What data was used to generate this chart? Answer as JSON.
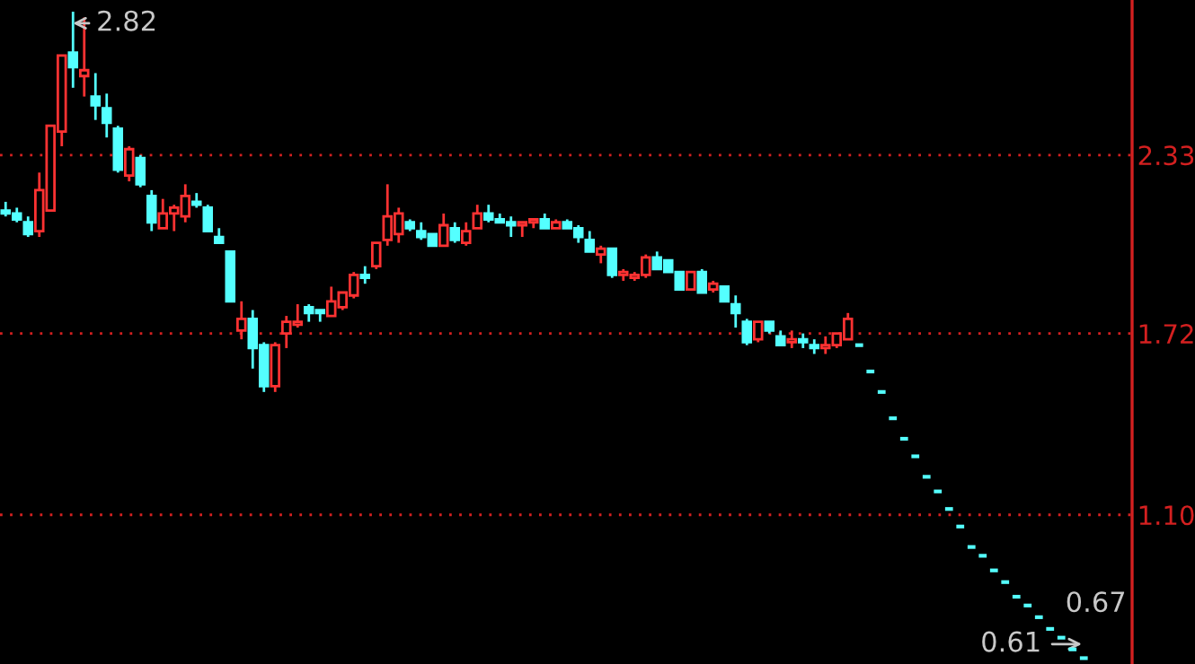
{
  "chart_data": {
    "type": "candlestick",
    "categories": [
      null,
      null,
      null,
      null,
      null,
      null,
      null,
      null,
      null,
      null,
      null,
      null,
      null,
      null,
      null,
      null,
      null,
      null,
      null,
      null,
      null,
      null,
      null,
      null,
      null,
      null,
      null,
      null,
      null,
      null,
      null,
      null,
      null,
      null,
      null,
      null,
      null,
      null,
      null,
      null,
      null,
      null,
      null,
      null,
      null,
      null,
      null,
      null,
      null,
      null,
      null,
      null,
      null,
      null,
      null,
      null,
      null,
      null,
      null,
      null,
      null,
      null,
      null,
      null,
      null,
      null,
      null,
      null,
      null,
      null,
      null,
      null,
      null,
      null,
      null,
      null,
      null,
      null,
      null,
      null,
      null,
      null,
      null,
      null,
      null,
      null,
      null,
      null,
      null,
      null,
      null,
      null,
      null,
      null,
      null,
      null,
      null
    ],
    "ohlc": [
      [
        2.14,
        2.17,
        2.12,
        2.13
      ],
      [
        2.13,
        2.15,
        2.1,
        2.11
      ],
      [
        2.1,
        2.12,
        2.05,
        2.06
      ],
      [
        2.07,
        2.27,
        2.05,
        2.21
      ],
      [
        2.14,
        2.43,
        2.14,
        2.43
      ],
      [
        2.41,
        2.67,
        2.36,
        2.67
      ],
      [
        2.68,
        2.82,
        2.56,
        2.63
      ],
      [
        2.6,
        2.8,
        2.53,
        2.62
      ],
      [
        2.53,
        2.61,
        2.45,
        2.5
      ],
      [
        2.49,
        2.54,
        2.39,
        2.44
      ],
      [
        2.42,
        2.43,
        2.27,
        2.28
      ],
      [
        2.26,
        2.36,
        2.24,
        2.35
      ],
      [
        2.32,
        2.33,
        2.22,
        2.23
      ],
      [
        2.19,
        2.21,
        2.07,
        2.1
      ],
      [
        2.08,
        2.18,
        2.08,
        2.13
      ],
      [
        2.13,
        2.16,
        2.07,
        2.15
      ],
      [
        2.12,
        2.23,
        2.1,
        2.19
      ],
      [
        2.17,
        2.2,
        2.15,
        2.16
      ],
      [
        2.15,
        2.16,
        2.07,
        2.07
      ],
      [
        2.05,
        2.08,
        2.03,
        2.03
      ],
      [
        2.0,
        2.0,
        1.83,
        1.83
      ],
      [
        1.73,
        1.83,
        1.7,
        1.77
      ],
      [
        1.77,
        1.8,
        1.6,
        1.67
      ],
      [
        1.68,
        1.69,
        1.52,
        1.54
      ],
      [
        1.54,
        1.69,
        1.52,
        1.68
      ],
      [
        1.72,
        1.78,
        1.67,
        1.76
      ],
      [
        1.75,
        1.82,
        1.74,
        1.76
      ],
      [
        1.81,
        1.82,
        1.76,
        1.79
      ],
      [
        1.8,
        1.8,
        1.76,
        1.79
      ],
      [
        1.78,
        1.88,
        1.78,
        1.83
      ],
      [
        1.81,
        1.86,
        1.8,
        1.86
      ],
      [
        1.85,
        1.93,
        1.84,
        1.92
      ],
      [
        1.92,
        1.95,
        1.89,
        1.91
      ],
      [
        1.95,
        2.03,
        1.94,
        2.03
      ],
      [
        2.04,
        2.23,
        2.02,
        2.12
      ],
      [
        2.06,
        2.15,
        2.03,
        2.13
      ],
      [
        2.1,
        2.11,
        2.07,
        2.08
      ],
      [
        2.07,
        2.1,
        2.04,
        2.05
      ],
      [
        2.06,
        2.06,
        2.02,
        2.02
      ],
      [
        2.02,
        2.13,
        2.02,
        2.09
      ],
      [
        2.08,
        2.1,
        2.03,
        2.04
      ],
      [
        2.03,
        2.1,
        2.02,
        2.07
      ],
      [
        2.08,
        2.16,
        2.08,
        2.13
      ],
      [
        2.13,
        2.16,
        2.1,
        2.11
      ],
      [
        2.11,
        2.13,
        2.1,
        2.1
      ],
      [
        2.1,
        2.12,
        2.05,
        2.09
      ],
      [
        2.09,
        2.1,
        2.05,
        2.1
      ],
      [
        2.1,
        2.11,
        2.08,
        2.11
      ],
      [
        2.11,
        2.13,
        2.08,
        2.08
      ],
      [
        2.08,
        2.11,
        2.08,
        2.1
      ],
      [
        2.1,
        2.11,
        2.08,
        2.08
      ],
      [
        2.08,
        2.09,
        2.03,
        2.05
      ],
      [
        2.04,
        2.07,
        2.0,
        2.0
      ],
      [
        1.99,
        2.02,
        1.96,
        2.01
      ],
      [
        2.01,
        2.01,
        1.91,
        1.92
      ],
      [
        1.92,
        1.94,
        1.9,
        1.93
      ],
      [
        1.91,
        1.93,
        1.9,
        1.92
      ],
      [
        1.92,
        1.99,
        1.91,
        1.98
      ],
      [
        1.98,
        2.0,
        1.94,
        1.94
      ],
      [
        1.97,
        1.97,
        1.93,
        1.93
      ],
      [
        1.93,
        1.93,
        1.87,
        1.87
      ],
      [
        1.87,
        1.93,
        1.87,
        1.93
      ],
      [
        1.93,
        1.94,
        1.86,
        1.86
      ],
      [
        1.87,
        1.9,
        1.86,
        1.89
      ],
      [
        1.88,
        1.88,
        1.83,
        1.83
      ],
      [
        1.82,
        1.85,
        1.74,
        1.79
      ],
      [
        1.76,
        1.77,
        1.68,
        1.69
      ],
      [
        1.7,
        1.76,
        1.69,
        1.76
      ],
      [
        1.76,
        1.76,
        1.72,
        1.73
      ],
      [
        1.71,
        1.73,
        1.68,
        1.68
      ],
      [
        1.69,
        1.73,
        1.67,
        1.7
      ],
      [
        1.7,
        1.72,
        1.67,
        1.69
      ],
      [
        1.68,
        1.7,
        1.65,
        1.67
      ],
      [
        1.67,
        1.71,
        1.65,
        1.68
      ],
      [
        1.68,
        1.72,
        1.67,
        1.72
      ],
      [
        1.7,
        1.79,
        1.7,
        1.77
      ],
      [
        1.68,
        1.68,
        1.68,
        1.68
      ],
      [
        1.59,
        1.59,
        1.59,
        1.59
      ],
      [
        1.52,
        1.52,
        1.52,
        1.52
      ],
      [
        1.43,
        1.43,
        1.43,
        1.43
      ],
      [
        1.36,
        1.36,
        1.36,
        1.36
      ],
      [
        1.3,
        1.3,
        1.3,
        1.3
      ],
      [
        1.23,
        1.23,
        1.23,
        1.23
      ],
      [
        1.18,
        1.18,
        1.18,
        1.18
      ],
      [
        1.12,
        1.12,
        1.12,
        1.12
      ],
      [
        1.06,
        1.06,
        1.06,
        1.06
      ],
      [
        0.99,
        0.99,
        0.99,
        0.99
      ],
      [
        0.96,
        0.96,
        0.96,
        0.96
      ],
      [
        0.91,
        0.91,
        0.91,
        0.91
      ],
      [
        0.87,
        0.87,
        0.87,
        0.87
      ],
      [
        0.82,
        0.82,
        0.82,
        0.82
      ],
      [
        0.79,
        0.79,
        0.79,
        0.79
      ],
      [
        0.75,
        0.75,
        0.75,
        0.75
      ],
      [
        0.71,
        0.71,
        0.71,
        0.71
      ],
      [
        0.68,
        0.68,
        0.68,
        0.68
      ],
      [
        0.64,
        0.64,
        0.64,
        0.64
      ],
      [
        0.61,
        0.61,
        0.61,
        0.61
      ]
    ],
    "colors": [
      "#54ffff",
      "#54ffff",
      "#54ffff",
      "#ff3232",
      "#ff3232",
      "#ff3232",
      "#54ffff",
      "#ff3232",
      "#54ffff",
      "#54ffff",
      "#54ffff",
      "#ff3232",
      "#54ffff",
      "#54ffff",
      "#ff3232",
      "#ff3232",
      "#ff3232",
      "#54ffff",
      "#54ffff",
      "#54ffff",
      "#54ffff",
      "#ff3232",
      "#54ffff",
      "#54ffff",
      "#ff3232",
      "#ff3232",
      "#ff3232",
      "#54ffff",
      "#54ffff",
      "#ff3232",
      "#ff3232",
      "#ff3232",
      "#54ffff",
      "#ff3232",
      "#ff3232",
      "#ff3232",
      "#54ffff",
      "#54ffff",
      "#54ffff",
      "#ff3232",
      "#54ffff",
      "#ff3232",
      "#ff3232",
      "#54ffff",
      "#54ffff",
      "#54ffff",
      "#ff3232",
      "#ff3232",
      "#54ffff",
      "#ff3232",
      "#54ffff",
      "#54ffff",
      "#54ffff",
      "#ff3232",
      "#54ffff",
      "#ff3232",
      "#ff3232",
      "#ff3232",
      "#54ffff",
      "#54ffff",
      "#54ffff",
      "#ff3232",
      "#54ffff",
      "#ff3232",
      "#54ffff",
      "#54ffff",
      "#54ffff",
      "#ff3232",
      "#54ffff",
      "#54ffff",
      "#ff3232",
      "#54ffff",
      "#54ffff",
      "#ff3232",
      "#ff3232",
      "#ff3232",
      "#54ffff",
      "#54ffff",
      "#54ffff",
      "#54ffff",
      "#54ffff",
      "#54ffff",
      "#54ffff",
      "#54ffff",
      "#54ffff",
      "#54ffff",
      "#54ffff",
      "#54ffff",
      "#54ffff",
      "#54ffff",
      "#54ffff",
      "#54ffff",
      "#54ffff",
      "#54ffff",
      "#54ffff",
      "#54ffff",
      "#54ffff"
    ],
    "ylim": [
      0.59,
      2.86
    ],
    "yticks": [
      {
        "value": 1.1,
        "label": "1.10"
      },
      {
        "value": 1.72,
        "label": "1.72"
      },
      {
        "value": 2.33,
        "label": "2.33"
      }
    ],
    "grid": "y",
    "tick_labels": "y",
    "annotations": [
      "2.82",
      "0.61",
      "0.67"
    ]
  }
}
